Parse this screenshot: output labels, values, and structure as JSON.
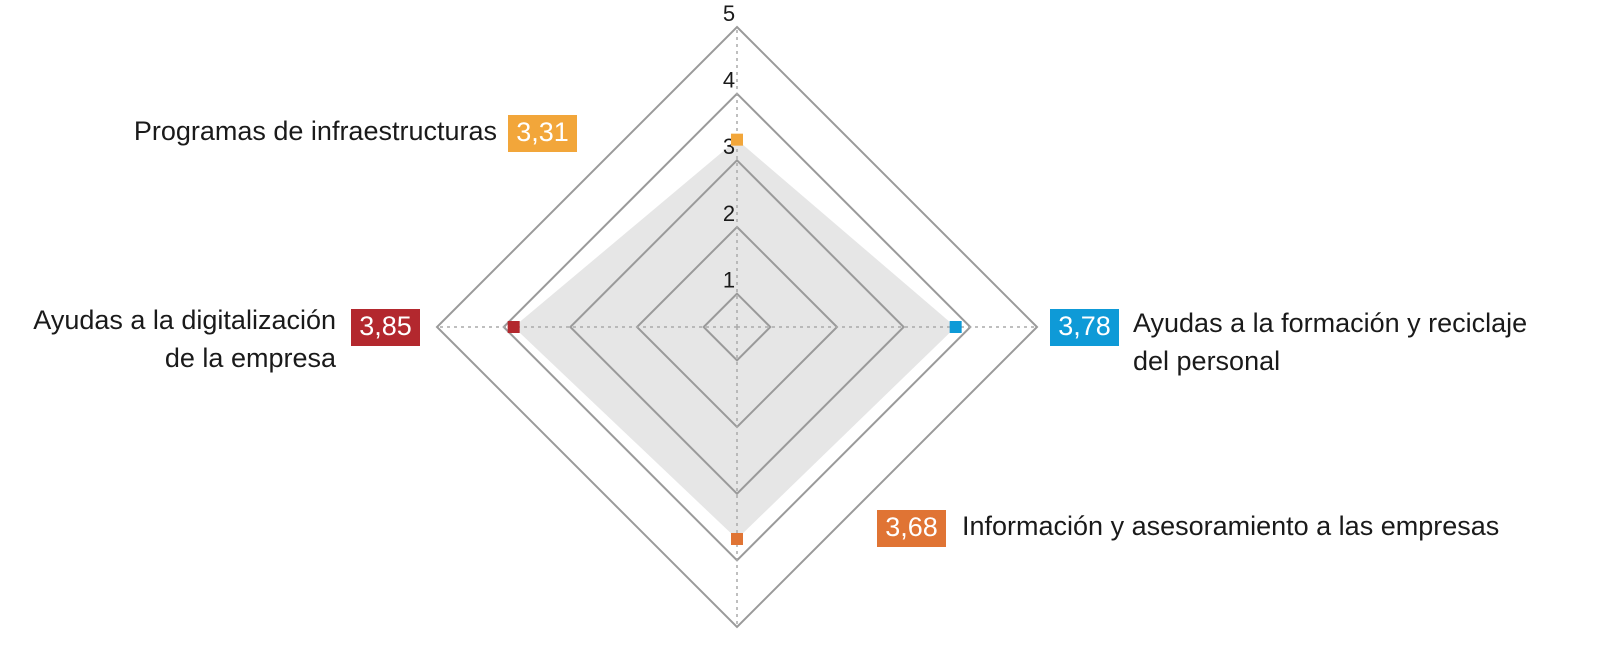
{
  "chart_data": {
    "type": "radar",
    "categories": [
      [
        "Programas de infraestructuras"
      ],
      [
        "Ayudas a la formación y reciclaje",
        "del personal"
      ],
      [
        "Información y asesoramiento a las empresas"
      ],
      [
        "Ayudas a la digitalización",
        "de la empresa"
      ]
    ],
    "values": [
      3.31,
      3.78,
      3.68,
      3.85
    ],
    "value_labels": [
      "3,31",
      "3,78",
      "3,68",
      "3,85"
    ],
    "colors": [
      "#f2a63a",
      "#0e9ad7",
      "#e07434",
      "#b3282e"
    ],
    "fill": "#e6e6e6",
    "ylim": [
      0.5,
      5
    ],
    "yticks": [
      1,
      2,
      3,
      4,
      5
    ],
    "grid": true
  }
}
